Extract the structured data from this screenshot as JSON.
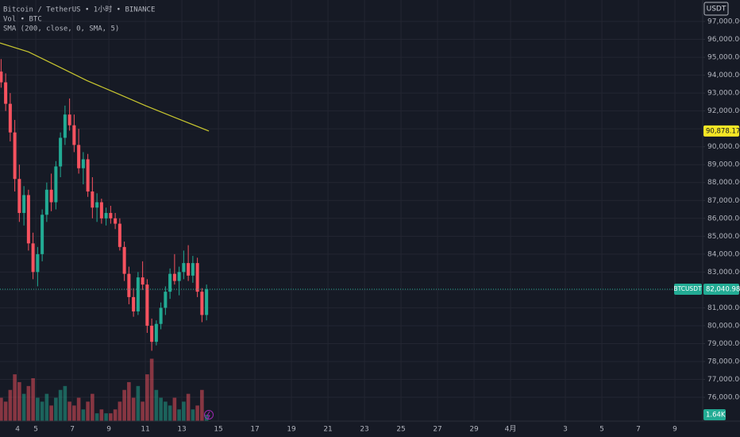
{
  "chart_data": {
    "type": "candlestick",
    "title": "Bitcoin / TetherUS • 1小时 • BINANCE",
    "volume_title": "Vol • BTC",
    "indicator_title": "SMA (200, close, 0, SMA, 5)",
    "currency": "USDT",
    "symbol": "BTCUSDT",
    "up_color": "#22ab94",
    "down_color": "#f7525f",
    "sma_color": "#c9c72f",
    "x": [
      3.1,
      3.35,
      3.6,
      3.85,
      4.1,
      4.35,
      4.6,
      4.85,
      5.1,
      5.35,
      5.6,
      5.85,
      6.1,
      6.35,
      6.6,
      6.85,
      7.1,
      7.35,
      7.6,
      7.85,
      8.1,
      8.35,
      8.6,
      8.85,
      9.1,
      9.35,
      9.6,
      9.85,
      10.1,
      10.35,
      10.6,
      10.85,
      11.1,
      11.35,
      11.6,
      11.85,
      12.1,
      12.35,
      12.6,
      12.85,
      13.1,
      13.35,
      13.6,
      13.85,
      14.1,
      14.35
    ],
    "open": [
      94200,
      93600,
      92400,
      90800,
      88200,
      86300,
      87300,
      84600,
      83000,
      84000,
      86200,
      87600,
      86900,
      88900,
      90500,
      91800,
      91200,
      90100,
      88800,
      89300,
      87500,
      86600,
      86900,
      86000,
      86300,
      86000,
      85700,
      84400,
      82900,
      81600,
      80800,
      82700,
      82300,
      80000,
      79100,
      80100,
      81000,
      81900,
      82900,
      82500,
      83000,
      83500,
      82800,
      83500,
      81900,
      80600
    ],
    "high": [
      94900,
      94100,
      93000,
      91500,
      89000,
      87800,
      87600,
      85200,
      84400,
      86500,
      88000,
      88500,
      89200,
      90800,
      92300,
      92700,
      91800,
      91000,
      89700,
      89600,
      88300,
      87400,
      87100,
      86600,
      86700,
      86300,
      86000,
      84700,
      83300,
      82100,
      83000,
      83600,
      82600,
      80400,
      80300,
      81300,
      82200,
      83200,
      84000,
      83300,
      84200,
      84500,
      83900,
      83800,
      82100,
      82300
    ],
    "low": [
      93300,
      92000,
      90300,
      87500,
      85800,
      85600,
      84200,
      82600,
      82200,
      83600,
      85800,
      86400,
      86500,
      88300,
      90100,
      90900,
      89700,
      88500,
      87900,
      87200,
      86000,
      85800,
      85700,
      85600,
      85700,
      85400,
      84200,
      82500,
      81200,
      80500,
      80600,
      82000,
      79600,
      78600,
      78900,
      79800,
      80600,
      81500,
      82300,
      81700,
      82600,
      82500,
      82400,
      81600,
      80200,
      80300
    ],
    "close": [
      93600,
      92400,
      90800,
      88200,
      86300,
      87300,
      84600,
      83000,
      84000,
      86200,
      87600,
      86900,
      88900,
      90500,
      91800,
      91200,
      90100,
      88800,
      89300,
      87500,
      86600,
      86900,
      86000,
      86300,
      86000,
      85700,
      84400,
      82900,
      81600,
      80800,
      82700,
      82300,
      80000,
      79100,
      80100,
      81000,
      81900,
      82900,
      82500,
      83000,
      83500,
      82800,
      83500,
      81900,
      80600,
      82040.98
    ],
    "volume": [
      6,
      5,
      8,
      12,
      10,
      7,
      9,
      11,
      6,
      5,
      7,
      4,
      6,
      8,
      9,
      5,
      4,
      6,
      3,
      5,
      7,
      2,
      3,
      2,
      2,
      3,
      5,
      8,
      10,
      6,
      9,
      5,
      12,
      16,
      8,
      6,
      5,
      4,
      6,
      3,
      5,
      7,
      3,
      4,
      8,
      1.64
    ],
    "sma": {
      "name": "SMA",
      "x": [
        3.04,
        4.6,
        6.2,
        7.8,
        9.4,
        11,
        12.7,
        14.48
      ],
      "values": [
        95800,
        95300,
        94500,
        93700,
        93000,
        92300,
        91600,
        90878.17
      ]
    },
    "sma_label": {
      "value": 90878.17,
      "label": "90,878.17"
    },
    "last_price": {
      "value": 82040.98,
      "label": "82,040.98"
    },
    "volume_label": {
      "value": 1.64,
      "label": "1.64K"
    },
    "ylim": [
      74670,
      98200
    ],
    "y2lim": [
      0,
      108
    ],
    "xlim": [
      3.04,
      41.52
    ],
    "grid": true,
    "yticks": [
      {
        "value": 76000,
        "label": "76,000.00"
      },
      {
        "value": 77000,
        "label": "77,000.00"
      },
      {
        "value": 78000,
        "label": "78,000.00"
      },
      {
        "value": 79000,
        "label": "79,000.00"
      },
      {
        "value": 80000,
        "label": "80,000.00"
      },
      {
        "value": 81000,
        "label": "81,000.00"
      },
      {
        "value": 82000,
        "label": "82,000.00"
      },
      {
        "value": 83000,
        "label": "83,000.00"
      },
      {
        "value": 84000,
        "label": "84,000.00"
      },
      {
        "value": 85000,
        "label": "85,000.00"
      },
      {
        "value": 86000,
        "label": "86,000.00"
      },
      {
        "value": 87000,
        "label": "87,000.00"
      },
      {
        "value": 88000,
        "label": "88,000.00"
      },
      {
        "value": 89000,
        "label": "89,000.00"
      },
      {
        "value": 90000,
        "label": "90,000.00"
      },
      {
        "value": 91000,
        "label": "91,000.00"
      },
      {
        "value": 92000,
        "label": "92,000.00"
      },
      {
        "value": 93000,
        "label": "93,000.00"
      },
      {
        "value": 94000,
        "label": "94,000.00"
      },
      {
        "value": 95000,
        "label": "95,000.00"
      },
      {
        "value": 96000,
        "label": "96,000.00"
      },
      {
        "value": 97000,
        "label": "97,000.00"
      }
    ],
    "xticks": [
      4,
      5,
      7,
      9,
      11,
      13,
      15,
      17,
      19,
      21,
      23,
      25,
      27,
      29,
      {
        "value": 31,
        "label": "4月"
      },
      {
        "value": 34,
        "label": "3"
      },
      {
        "value": 36,
        "label": "5"
      },
      {
        "value": 38,
        "label": "7"
      },
      {
        "value": 40,
        "label": "9"
      }
    ]
  }
}
